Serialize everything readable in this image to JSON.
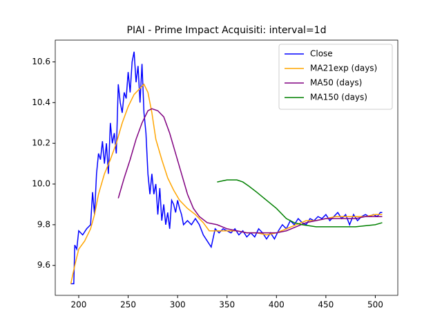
{
  "chart_data": {
    "type": "line",
    "title": "PIAI - Prime Impact Acquisiti: interval=1d",
    "xlim": [
      176.25,
      522.75
    ],
    "ylim": [
      9.453,
      10.707
    ],
    "xticks": [
      200,
      250,
      300,
      350,
      400,
      450,
      500
    ],
    "yticks": [
      9.6,
      9.8,
      {
        "value": 10,
        "label": "10.0"
      },
      10.2,
      10.4,
      10.6
    ],
    "legend": "upper right",
    "series": [
      {
        "name": "Close",
        "color": "#0000ff",
        "x": [
          192,
          195,
          196,
          198,
          200,
          204,
          208,
          212,
          214,
          216,
          218,
          220,
          222,
          224,
          226,
          228,
          230,
          232,
          234,
          236,
          238,
          240,
          242,
          244,
          246,
          248,
          250,
          252,
          254,
          256,
          258,
          260,
          262,
          264,
          266,
          268,
          270,
          272,
          274,
          276,
          278,
          280,
          282,
          284,
          286,
          288,
          290,
          292,
          294,
          296,
          298,
          300,
          302,
          304,
          306,
          310,
          314,
          318,
          322,
          326,
          330,
          334,
          338,
          342,
          346,
          350,
          354,
          358,
          362,
          366,
          370,
          374,
          378,
          382,
          386,
          390,
          394,
          398,
          402,
          406,
          410,
          414,
          418,
          422,
          426,
          430,
          434,
          438,
          442,
          446,
          450,
          454,
          458,
          462,
          466,
          470,
          474,
          478,
          482,
          486,
          490,
          494,
          498,
          502,
          505,
          507
        ],
        "values": [
          9.51,
          9.51,
          9.7,
          9.68,
          9.77,
          9.75,
          9.78,
          9.8,
          9.96,
          9.85,
          10.05,
          10.15,
          10.12,
          10.21,
          10.1,
          10.2,
          10.05,
          10.3,
          10.2,
          10.25,
          10.15,
          10.49,
          10.4,
          10.35,
          10.45,
          10.42,
          10.55,
          10.45,
          10.6,
          10.65,
          10.5,
          10.58,
          10.4,
          10.59,
          10.35,
          10.25,
          10.05,
          9.95,
          10.05,
          9.95,
          10.0,
          9.85,
          9.98,
          9.82,
          9.9,
          9.8,
          9.86,
          9.78,
          9.92,
          9.9,
          9.86,
          9.92,
          9.88,
          9.85,
          9.8,
          9.82,
          9.8,
          9.83,
          9.8,
          9.75,
          9.72,
          9.69,
          9.78,
          9.76,
          9.78,
          9.77,
          9.76,
          9.78,
          9.75,
          9.77,
          9.74,
          9.76,
          9.74,
          9.78,
          9.76,
          9.73,
          9.76,
          9.73,
          9.77,
          9.8,
          9.78,
          9.82,
          9.8,
          9.83,
          9.81,
          9.8,
          9.83,
          9.82,
          9.84,
          9.83,
          9.85,
          9.82,
          9.84,
          9.86,
          9.83,
          9.85,
          9.8,
          9.85,
          9.82,
          9.84,
          9.85,
          9.84,
          9.85,
          9.84,
          9.86,
          9.86
        ]
      },
      {
        "name": "MA21exp (days)",
        "color": "#ffa500",
        "x": [
          192,
          196,
          200,
          206,
          212,
          216,
          220,
          226,
          232,
          238,
          244,
          250,
          256,
          262,
          266,
          270,
          274,
          278,
          284,
          290,
          296,
          302,
          310,
          318,
          326,
          332,
          340,
          350,
          360,
          370,
          380,
          390,
          400,
          410,
          420,
          430,
          440,
          450,
          460,
          470,
          480,
          490,
          500,
          507
        ],
        "values": [
          9.51,
          9.6,
          9.68,
          9.72,
          9.78,
          9.85,
          9.95,
          10.05,
          10.12,
          10.2,
          10.3,
          10.38,
          10.44,
          10.47,
          10.49,
          10.45,
          10.35,
          10.22,
          10.12,
          10.03,
          9.97,
          9.92,
          9.88,
          9.85,
          9.81,
          9.77,
          9.77,
          9.77,
          9.77,
          9.76,
          9.76,
          9.75,
          9.76,
          9.78,
          9.8,
          9.82,
          9.82,
          9.83,
          9.84,
          9.84,
          9.84,
          9.84,
          9.85,
          9.85
        ]
      },
      {
        "name": "MA50 (days)",
        "color": "#800080",
        "x": [
          240,
          246,
          252,
          258,
          264,
          270,
          274,
          280,
          286,
          292,
          298,
          304,
          310,
          316,
          322,
          330,
          340,
          350,
          360,
          370,
          380,
          390,
          400,
          410,
          420,
          430,
          440,
          450,
          460,
          470,
          480,
          490,
          500,
          507
        ],
        "values": [
          9.93,
          10.03,
          10.12,
          10.22,
          10.3,
          10.36,
          10.37,
          10.36,
          10.33,
          10.25,
          10.15,
          10.05,
          9.95,
          9.88,
          9.84,
          9.81,
          9.8,
          9.78,
          9.77,
          9.76,
          9.76,
          9.76,
          9.76,
          9.77,
          9.79,
          9.81,
          9.82,
          9.83,
          9.83,
          9.83,
          9.83,
          9.84,
          9.84,
          9.84
        ]
      },
      {
        "name": "MA150 (days)",
        "color": "#008000",
        "x": [
          340,
          350,
          360,
          366,
          372,
          380,
          390,
          400,
          410,
          418,
          426,
          440,
          460,
          480,
          500,
          507
        ],
        "values": [
          10.01,
          10.02,
          10.02,
          10.01,
          9.99,
          9.96,
          9.92,
          9.88,
          9.83,
          9.81,
          9.8,
          9.79,
          9.79,
          9.79,
          9.8,
          9.81
        ]
      }
    ]
  }
}
